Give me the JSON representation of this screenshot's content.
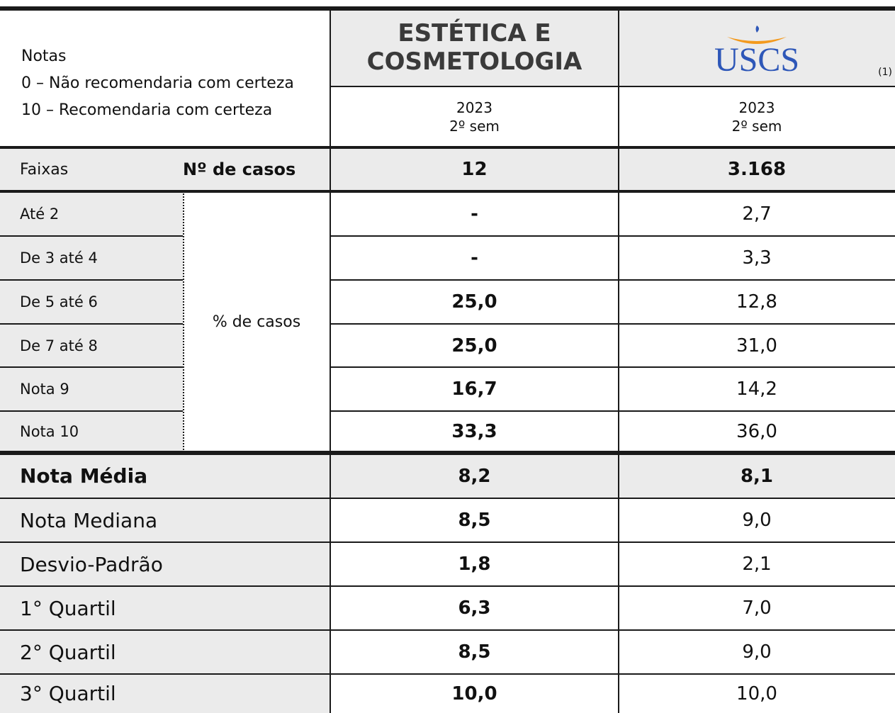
{
  "header": {
    "notes_title": "Notas",
    "notes": [
      "0 – Não recomendaria com certeza",
      "10 – Recomendaria com certeza"
    ],
    "columns": [
      {
        "title": [
          "ESTÉTICA E",
          "COSMETOLOGIA"
        ],
        "year": "2023",
        "period": "2º sem"
      },
      {
        "logo": "USCS",
        "note": "(1)",
        "year": "2023",
        "period": "2º sem"
      }
    ]
  },
  "cases": {
    "label": "Faixas",
    "sublabel": "Nº de casos",
    "values": [
      "12",
      "3.168"
    ]
  },
  "bands": {
    "group_label": "% de casos",
    "rows": [
      {
        "label": "Até 2",
        "values": [
          "-",
          "2,7"
        ]
      },
      {
        "label": "De 3 até 4",
        "values": [
          "-",
          "3,3"
        ]
      },
      {
        "label": "De 5 até 6",
        "values": [
          "25,0",
          "12,8"
        ]
      },
      {
        "label": "De 7 até 8",
        "values": [
          "25,0",
          "31,0"
        ]
      },
      {
        "label": "Nota 9",
        "values": [
          "16,7",
          "14,2"
        ]
      },
      {
        "label": "Nota 10",
        "values": [
          "33,3",
          "36,0"
        ]
      }
    ]
  },
  "stats": {
    "rows": [
      {
        "label": "Nota Média",
        "values": [
          "8,2",
          "8,1"
        ]
      },
      {
        "label": "Nota Mediana",
        "values": [
          "8,5",
          "9,0"
        ]
      },
      {
        "label": "Desvio-Padrão",
        "values": [
          "1,8",
          "2,1"
        ]
      },
      {
        "label": "1° Quartil",
        "values": [
          "6,3",
          "7,0"
        ]
      },
      {
        "label": "2° Quartil",
        "values": [
          "8,5",
          "9,0"
        ]
      },
      {
        "label": "3° Quartil",
        "values": [
          "10,0",
          "10,0"
        ]
      }
    ]
  }
}
